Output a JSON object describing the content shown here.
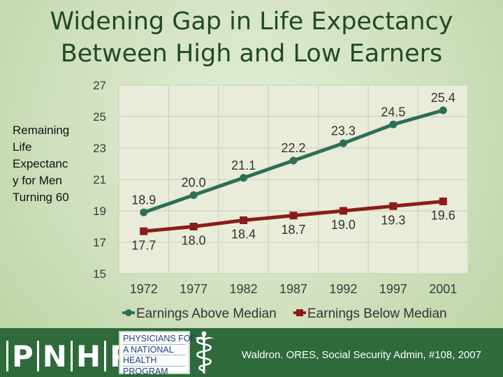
{
  "title_lines": [
    "Widening Gap in Life Expectancy",
    "Between High and Low Earners"
  ],
  "ylabel_lines": [
    "Remaining",
    "Life",
    "Expectanc",
    "y for Men",
    "Turning 60"
  ],
  "chart_data": {
    "type": "line",
    "title": "Widening Gap in Life Expectancy Between High and Low Earners",
    "ylabel": "Remaining Life Expectancy for Men Turning 60",
    "xlabel": "",
    "categories": [
      "1972",
      "1977",
      "1982",
      "1987",
      "1992",
      "1997",
      "2001"
    ],
    "ylim": [
      15,
      27
    ],
    "yticks": [
      "15",
      "17",
      "19",
      "21",
      "23",
      "25",
      "27"
    ],
    "grid": true,
    "legend_position": "bottom",
    "series": [
      {
        "name": "Earnings Above Median",
        "color": "#2d6e58",
        "values": [
          18.9,
          20.0,
          21.1,
          22.2,
          23.3,
          24.5,
          25.4
        ],
        "labels": [
          "18.9",
          "20.0",
          "21.1",
          "22.2",
          "23.3",
          "24.5",
          "25.4"
        ],
        "label_position": "above"
      },
      {
        "name": "Earnings Below Median",
        "color": "#8a1c1c",
        "values": [
          17.7,
          18.0,
          18.4,
          18.7,
          19.0,
          19.3,
          19.6
        ],
        "labels": [
          "17.7",
          "18.0",
          "18.4",
          "18.7",
          "19.0",
          "19.3",
          "19.6"
        ],
        "label_position": "below"
      }
    ]
  },
  "footer": {
    "letters": [
      "P",
      "N",
      "H",
      "P"
    ],
    "org_lines": [
      "PHYSICIANS FOR",
      "A NATIONAL",
      "HEALTH",
      "PROGRAM"
    ],
    "citation": "Waldron. ORES, Social Security Admin, #108, 2007",
    "bg_color": "#2e6a3a"
  }
}
